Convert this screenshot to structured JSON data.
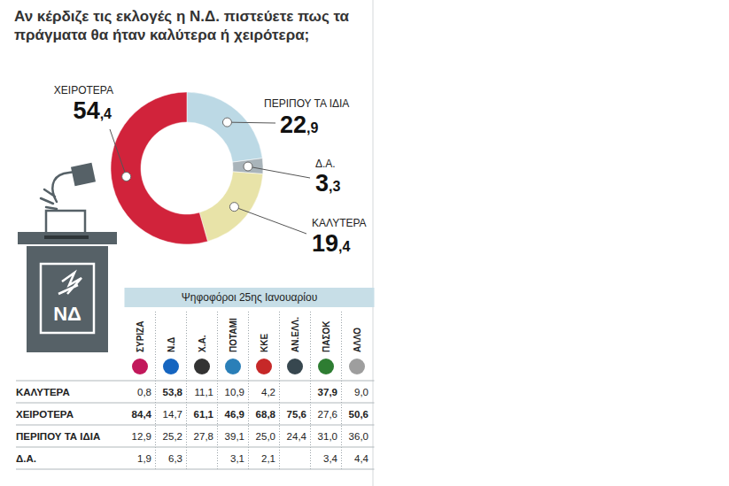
{
  "chart_data": {
    "type": "pie",
    "title": "Αν κέρδιζε τις εκλογές η Ν.Δ. πιστεύετε πως τα πράγματα θα ήταν καλύτερα ή χειρότερα;",
    "categories": [
      "ΠΕΡΙΠΟΥ ΤΑ ΙΔΙΑ",
      "Δ.Α.",
      "ΚΑΛΥΤΕΡΑ",
      "ΧΕΙΡΟΤΕΡΑ"
    ],
    "values": [
      22.9,
      3.3,
      19.4,
      54.4
    ],
    "value_labels": [
      "22,9",
      "3,3",
      "19,4",
      "54,4"
    ],
    "colors": [
      "#bcd9e5",
      "#a9b4ba",
      "#e8e3a8",
      "#d1233b"
    ],
    "data_labels": true
  },
  "table": {
    "header": "Ψηφοφόροι 25ης Ιανουαρίου",
    "columns": [
      "ΣΥΡΙΖΑ",
      "Ν.Δ",
      "Χ.Α.",
      "ΠΟΤΑΜΙ",
      "ΚΚΕ",
      "ΑΝ.ΕΛΛ.",
      "ΠΑΣΟΚ",
      "ΑΛΛΟ"
    ],
    "rows": [
      {
        "label": "ΚΑΛΥΤΕΡΑ",
        "values": [
          "0,8",
          "53,8",
          "11,1",
          "10,9",
          "4,2",
          null,
          "37,9",
          "9,0"
        ]
      },
      {
        "label": "ΧΕΙΡΟΤΕΡΑ",
        "values": [
          "84,4",
          "14,7",
          "61,1",
          "46,9",
          "68,8",
          "75,6",
          "27,6",
          "50,6"
        ]
      },
      {
        "label": "ΠΕΡΙΠΟΥ ΤΑ ΙΔΙΑ",
        "values": [
          "12,9",
          "25,2",
          "27,8",
          "39,1",
          "25,0",
          "24,4",
          "31,0",
          "36,0"
        ]
      },
      {
        "label": "Δ.Α.",
        "values": [
          "1,9",
          "6,3",
          null,
          "3,1",
          "2,1",
          null,
          "3,4",
          "4,4"
        ]
      }
    ]
  },
  "illustration": {
    "logo": "ΝΔ"
  }
}
